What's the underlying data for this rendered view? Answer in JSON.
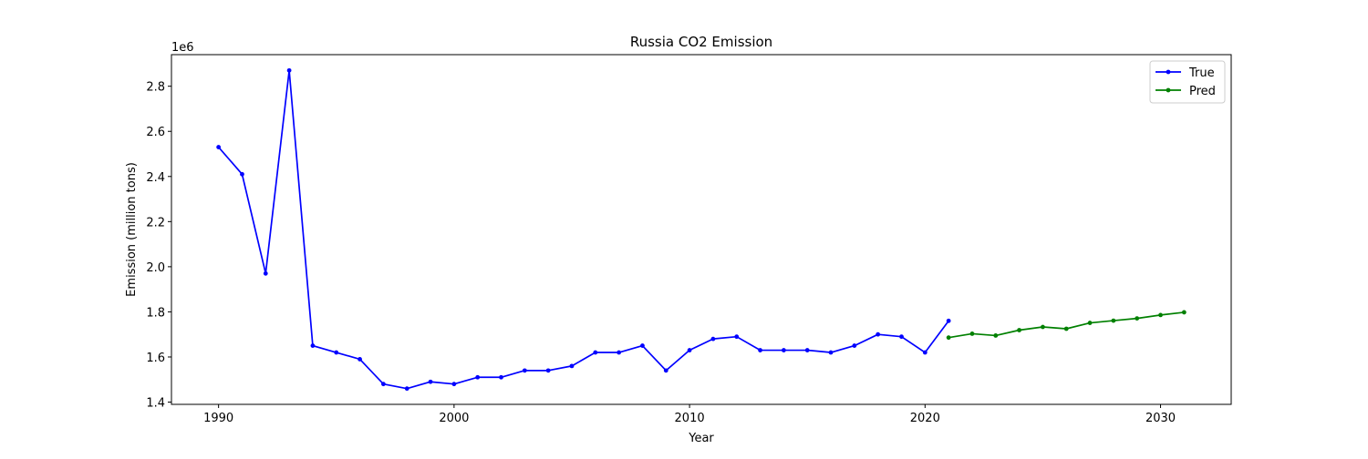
{
  "chart_data": {
    "type": "line",
    "title": "Russia CO2 Emission",
    "xlabel": "Year",
    "ylabel": "Emission (million tons)",
    "y_offset_label": "1e6",
    "xlim": [
      1988,
      2033
    ],
    "ylim": [
      1.39,
      2.94
    ],
    "x_ticks": [
      1990,
      2000,
      2010,
      2020,
      2030
    ],
    "y_ticks": [
      1.4,
      1.6,
      1.8,
      2.0,
      2.2,
      2.4,
      2.6,
      2.8
    ],
    "grid": false,
    "legend_position": "top-right",
    "series": [
      {
        "name": "True",
        "color": "#0000ff",
        "x": [
          1990,
          1991,
          1992,
          1993,
          1994,
          1995,
          1996,
          1997,
          1998,
          1999,
          2000,
          2001,
          2002,
          2003,
          2004,
          2005,
          2006,
          2007,
          2008,
          2009,
          2010,
          2011,
          2012,
          2013,
          2014,
          2015,
          2016,
          2017,
          2018,
          2019,
          2020,
          2021
        ],
        "y": [
          2.53,
          2.41,
          1.97,
          2.87,
          1.65,
          1.62,
          1.59,
          1.48,
          1.46,
          1.49,
          1.48,
          1.51,
          1.51,
          1.54,
          1.54,
          1.56,
          1.62,
          1.62,
          1.65,
          1.54,
          1.63,
          1.68,
          1.69,
          1.63,
          1.63,
          1.63,
          1.62,
          1.65,
          1.7,
          1.69,
          1.62,
          1.76
        ]
      },
      {
        "name": "Pred",
        "color": "#008000",
        "x": [
          2021,
          2022,
          2023,
          2024,
          2025,
          2026,
          2027,
          2028,
          2029,
          2030,
          2031
        ],
        "y": [
          1.686,
          1.703,
          1.695,
          1.719,
          1.733,
          1.725,
          1.751,
          1.761,
          1.771,
          1.786,
          1.798
        ]
      }
    ]
  }
}
